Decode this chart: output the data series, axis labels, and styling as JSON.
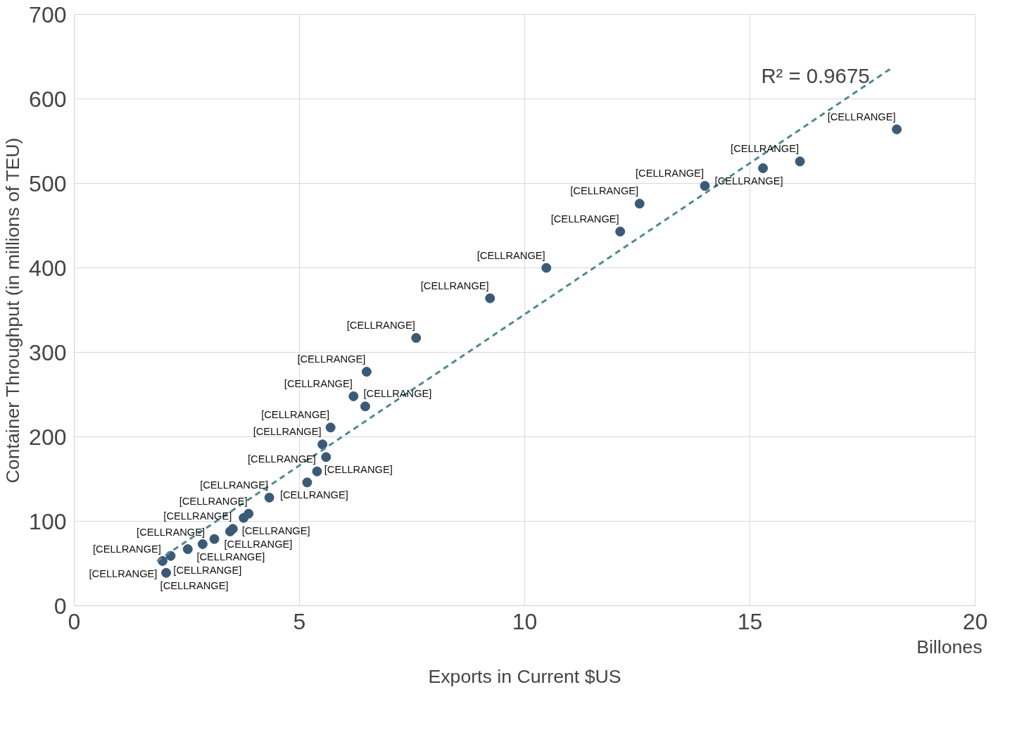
{
  "chart_data": {
    "type": "scatter",
    "xlabel": "Exports in Current $US",
    "ylabel": "Container Throughput (in millions of TEU)",
    "xlim": [
      0,
      20
    ],
    "xticks": [
      0,
      5,
      10,
      15,
      20
    ],
    "ylim": [
      0,
      700
    ],
    "yticks": [
      0,
      100,
      200,
      300,
      400,
      500,
      600,
      700
    ],
    "grid": true,
    "annotations": [
      "Billones",
      "R² = 0.9675"
    ],
    "series": [
      {
        "color": "#3b5a78",
        "marker": "circle",
        "x": [
          1.96,
          2.04,
          2.14,
          2.52,
          2.85,
          3.11,
          3.46,
          3.52,
          3.76,
          3.87,
          4.33,
          5.17,
          5.39,
          5.59,
          5.51,
          5.69,
          6.2,
          6.46,
          6.49,
          7.59,
          9.23,
          10.48,
          12.12,
          12.55,
          14.0,
          15.29,
          16.11,
          18.26
        ],
        "values": [
          53,
          39,
          59,
          67,
          73,
          79,
          88,
          91,
          104,
          109,
          128,
          146,
          159,
          176,
          191,
          211,
          248,
          236,
          277,
          317,
          364,
          400,
          443,
          476,
          497,
          518,
          526,
          564
        ],
        "value_labels": [
          "[CELLRANGE]",
          "[CELLRANGE]",
          "[CELLRANGE]",
          "[CELLRANGE]",
          "[CELLRANGE]",
          "[CELLRANGE]",
          "[CELLRANGE]",
          "[CELLRANGE]",
          "[CELLRANGE]",
          "[CELLRANGE]",
          "[CELLRANGE]",
          "[CELLRANGE]",
          "[CELLRANGE]",
          "[CELLRANGE]",
          "[CELLRANGE]",
          "[CELLRANGE]",
          "[CELLRANGE]",
          "[CELLRANGE]",
          "[CELLRANGE]",
          "[CELLRANGE]",
          "[CELLRANGE]",
          "[CELLRANGE]",
          "[CELLRANGE]",
          "[CELLRANGE]",
          "[CELLRANGE]",
          "[CELLRANGE]",
          "[CELLRANGE]",
          "[CELLRANGE]"
        ]
      },
      {
        "type": "line",
        "color": "#4e8a93",
        "line_style": "dashed",
        "x": [
          1.84,
          18.13
        ],
        "values": [
          53,
          636
        ]
      }
    ]
  }
}
